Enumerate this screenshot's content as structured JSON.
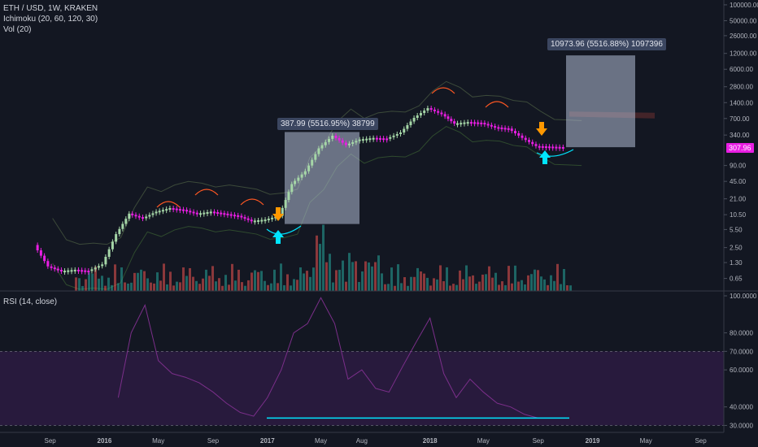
{
  "legend": {
    "symbol": "ETH / USD, 1W, KRAKEN",
    "ichimoku": "Ichimoku (20, 60, 120, 30)",
    "vol": "Vol (20)",
    "rsi": "RSI (14, close)"
  },
  "colors": {
    "background": "#131722",
    "up": "#a5d6a7",
    "down": "#e91ee3",
    "vol_up": "#26a69a",
    "vol_down": "#ef5350",
    "rsi_band": "#2b1b40",
    "rsi_line": "#7b2f8a",
    "measure_box": "#b2bdd6",
    "arrow_sell": "#ff9800",
    "arrow_buy": "#00e5ff",
    "arc": "#ff5722",
    "ichimoku_line": "#3c4a3a"
  },
  "annotations": {
    "measure_1": "387.99 (5516.95%) 38799",
    "measure_2": "10973.96 (5516.88%) 1097396",
    "last_price": "307.96"
  },
  "chart_data": [
    {
      "type": "candlestick",
      "title": "ETH / USD, 1W, KRAKEN",
      "y_scale": "log",
      "y_ticks": [
        "100000.00",
        "50000.00",
        "26000.00",
        "12000.00",
        "6000.00",
        "2800.00",
        "1400.00",
        "700.00",
        "340.00",
        "90.00",
        "45.00",
        "21.00",
        "10.50",
        "5.50",
        "2.50",
        "1.30",
        "0.65"
      ],
      "y_tick_values": [
        100000,
        50000,
        26000,
        12000,
        6000,
        2800,
        1400,
        700,
        340,
        90,
        45,
        21,
        10.5,
        5.5,
        2.5,
        1.3,
        0.65
      ],
      "x_ticks": [
        "Sep",
        "2016",
        "May",
        "Sep",
        "2017",
        "May",
        "Aug",
        "2018",
        "May",
        "Sep",
        "2019",
        "May",
        "Sep"
      ],
      "x_tick_values": [
        "2015-09",
        "2016-01",
        "2016-05",
        "2016-09",
        "2017-01",
        "2017-05",
        "2017-08",
        "2018-01",
        "2018-05",
        "2018-09",
        "2019-01",
        "2019-05",
        "2019-09"
      ],
      "series": [
        {
          "name": "ETH/USD close",
          "x": [
            "2015-08",
            "2015-09",
            "2015-10",
            "2015-11",
            "2015-12",
            "2016-01",
            "2016-02",
            "2016-03",
            "2016-04",
            "2016-05",
            "2016-06",
            "2016-07",
            "2016-08",
            "2016-09",
            "2016-10",
            "2016-11",
            "2016-12",
            "2017-01",
            "2017-02",
            "2017-03",
            "2017-04",
            "2017-05",
            "2017-06",
            "2017-07",
            "2017-08",
            "2017-09",
            "2017-10",
            "2017-11",
            "2017-12",
            "2018-01",
            "2018-02",
            "2018-03",
            "2018-04",
            "2018-05",
            "2018-06",
            "2018-07",
            "2018-08",
            "2018-09",
            "2018-10",
            "2018-11"
          ],
          "values": [
            2.8,
            1.1,
            0.9,
            0.95,
            0.9,
            1.2,
            4.5,
            11,
            9,
            12,
            14,
            13,
            11,
            12,
            11,
            10,
            8,
            8.5,
            10,
            40,
            70,
            190,
            330,
            220,
            280,
            300,
            290,
            380,
            720,
            1100,
            850,
            560,
            600,
            580,
            480,
            450,
            300,
            210,
            205,
            200
          ]
        }
      ]
    },
    {
      "type": "bar",
      "title": "Vol (20)",
      "y_scale": "relative"
    },
    {
      "type": "line",
      "title": "RSI (14, close)",
      "y_ticks": [
        "100.0000",
        "80.0000",
        "70.0000",
        "60.0000",
        "40.0000",
        "30.0000"
      ],
      "y_tick_values": [
        100,
        80,
        70,
        60,
        40,
        30
      ],
      "ylim": [
        28,
        100
      ],
      "series": [
        {
          "name": "RSI",
          "x": [
            "2016-02",
            "2016-03",
            "2016-04",
            "2016-05",
            "2016-06",
            "2016-07",
            "2016-08",
            "2016-09",
            "2016-10",
            "2016-11",
            "2016-12",
            "2017-01",
            "2017-02",
            "2017-03",
            "2017-04",
            "2017-05",
            "2017-06",
            "2017-07",
            "2017-08",
            "2017-09",
            "2017-10",
            "2017-11",
            "2017-12",
            "2018-01",
            "2018-02",
            "2018-03",
            "2018-04",
            "2018-05",
            "2018-06",
            "2018-07",
            "2018-08",
            "2018-09",
            "2018-10",
            "2018-11"
          ],
          "values": [
            45,
            80,
            95,
            65,
            58,
            56,
            53,
            48,
            42,
            37,
            35,
            45,
            60,
            80,
            85,
            99,
            85,
            55,
            60,
            50,
            48,
            62,
            75,
            88,
            58,
            45,
            55,
            48,
            42,
            40,
            36,
            34,
            34,
            34
          ]
        }
      ]
    }
  ]
}
